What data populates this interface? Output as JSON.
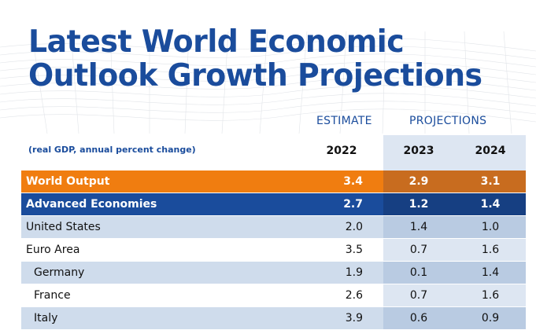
{
  "title_line1": "Latest World Economic",
  "title_line2": "Outlook Growth Projections",
  "subtitle": "(real GDP, annual percent change)",
  "headers": {
    "estimate": "ESTIMATE",
    "projections": "PROJECTIONS"
  },
  "years": [
    "2022",
    "2023",
    "2024"
  ],
  "colors": {
    "brand_blue": "#1a4c9c",
    "world_orange": "#f07d10"
  },
  "rows": [
    {
      "name": "World Output",
      "values": [
        "3.4",
        "2.9",
        "3.1"
      ]
    },
    {
      "name": "Advanced Economies",
      "values": [
        "2.7",
        "1.2",
        "1.4"
      ]
    },
    {
      "name": "United States",
      "values": [
        "2.0",
        "1.4",
        "1.0"
      ]
    },
    {
      "name": "Euro Area",
      "values": [
        "3.5",
        "0.7",
        "1.6"
      ]
    },
    {
      "name": "Germany",
      "values": [
        "1.9",
        "0.1",
        "1.4"
      ]
    },
    {
      "name": "France",
      "values": [
        "2.6",
        "0.7",
        "1.6"
      ]
    },
    {
      "name": "Italy",
      "values": [
        "3.9",
        "0.6",
        "0.9"
      ]
    }
  ]
}
